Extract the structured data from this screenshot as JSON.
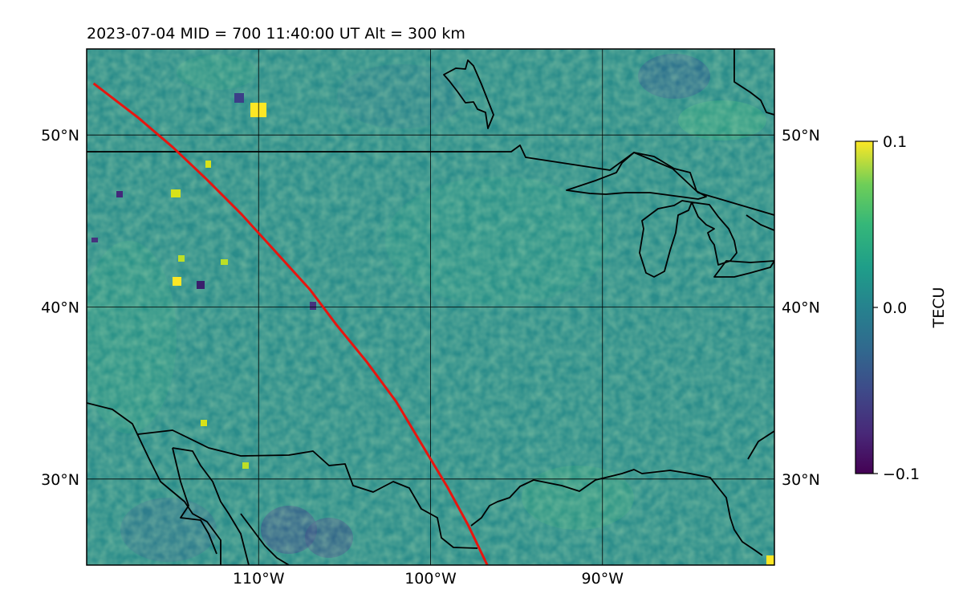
{
  "title": "2023-07-04  MID = 700    11:40:00  UT  Alt = 300 km",
  "map": {
    "lon_range": [
      -120,
      -80
    ],
    "lat_range": [
      25,
      55
    ],
    "lon_ticks": [
      {
        "value": -110,
        "label": "110°W"
      },
      {
        "value": -100,
        "label": "100°W"
      },
      {
        "value": -90,
        "label": "90°W"
      }
    ],
    "lat_ticks": [
      {
        "value": 50,
        "label": "50°N"
      },
      {
        "value": 40,
        "label": "40°N"
      },
      {
        "value": 30,
        "label": "30°N"
      }
    ],
    "track_color": "#e8150f",
    "track": [
      [
        -119.6,
        53.0
      ],
      [
        -117.0,
        51.0
      ],
      [
        -115.0,
        49.3
      ],
      [
        -113.0,
        47.4
      ],
      [
        -111.0,
        45.4
      ],
      [
        -109.0,
        43.2
      ],
      [
        -107.0,
        41.0
      ],
      [
        -105.5,
        39.0
      ],
      [
        -103.7,
        36.8
      ],
      [
        -102.0,
        34.5
      ],
      [
        -100.5,
        32.0
      ],
      [
        -99.0,
        29.5
      ],
      [
        -97.8,
        27.3
      ],
      [
        -96.7,
        25.0
      ]
    ]
  },
  "colorbar": {
    "label": "TECU",
    "colormap": "viridis",
    "min": -0.1,
    "max": 0.1,
    "ticks": [
      {
        "value": 0.1,
        "label": "0.1"
      },
      {
        "value": 0.0,
        "label": "0.0"
      },
      {
        "value": -0.1,
        "label": "−0.1"
      }
    ]
  }
}
